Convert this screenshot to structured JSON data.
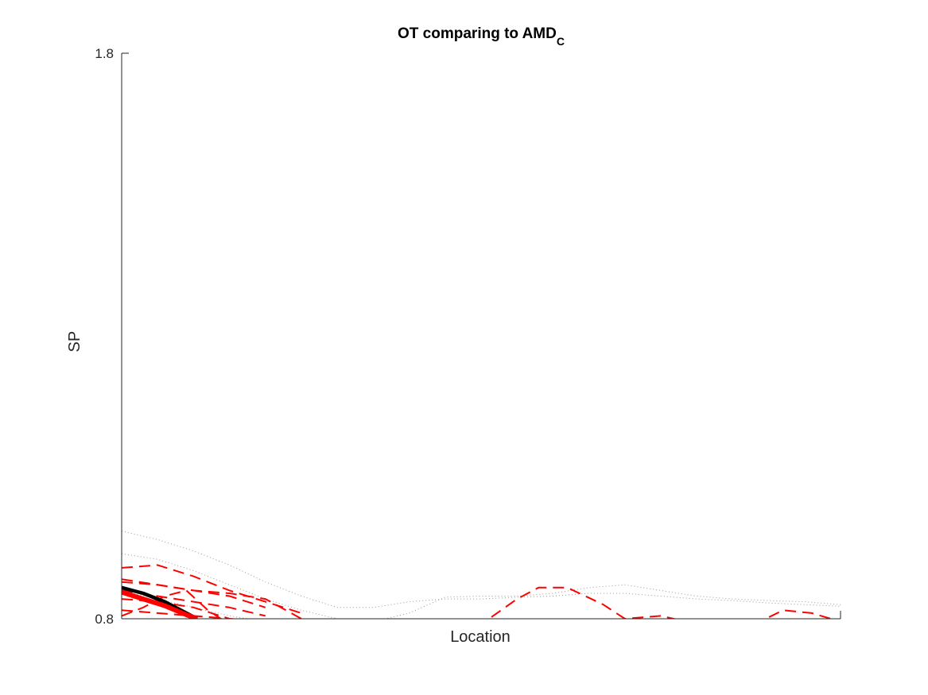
{
  "chart_data": {
    "type": "line",
    "title": "OT comparing to AMD",
    "title_subscript": "C",
    "xlabel": "Location",
    "ylabel": "SP",
    "xlim": [
      0,
      100
    ],
    "ylim": [
      0.8,
      1.8
    ],
    "yticks": [
      "0.8",
      "1.8"
    ],
    "grid": false,
    "colors": {
      "control": "#999999",
      "subject": "#ff0000",
      "mean_control": "#000000",
      "mean_subject": "#ff0000"
    },
    "series": [
      {
        "group": "control",
        "style": "dotted",
        "x": [
          0,
          5,
          10,
          15,
          20,
          25,
          30,
          35,
          40,
          45,
          50,
          55,
          60,
          65,
          70,
          75,
          80,
          85,
          90,
          95,
          100
        ],
        "y": [
          0.955,
          0.94,
          0.92,
          0.895,
          0.865,
          0.84,
          0.82,
          0.82,
          0.83,
          0.835,
          0.835,
          0.838,
          0.84,
          0.845,
          0.845,
          0.84,
          0.835,
          0.832,
          0.828,
          0.825,
          0.822
        ]
      },
      {
        "group": "control",
        "style": "dotted",
        "x": [
          0,
          5,
          10,
          15,
          20,
          25,
          30,
          35,
          40,
          45,
          50,
          55,
          60,
          65,
          70,
          75,
          80,
          85,
          90,
          95,
          100
        ],
        "y": [
          0.915,
          0.905,
          0.885,
          0.86,
          0.835,
          0.815,
          0.8,
          0.795,
          0.81,
          0.838,
          0.84,
          0.84,
          0.845,
          0.855,
          0.86,
          0.85,
          0.84,
          0.835,
          0.832,
          0.83,
          0.825
        ]
      },
      {
        "group": "control",
        "style": "dotted",
        "x": [
          0,
          5,
          10,
          15,
          20,
          25,
          30,
          35
        ],
        "y": [
          0.85,
          0.835,
          0.82,
          0.805,
          0.795,
          0.79,
          0.785,
          0.78
        ]
      },
      {
        "group": "subject",
        "style": "dashed",
        "x": [
          0,
          5,
          10,
          15,
          20,
          25
        ],
        "y": [
          0.89,
          0.895,
          0.875,
          0.85,
          0.83,
          0.81
        ]
      },
      {
        "group": "subject",
        "style": "dashed",
        "x": [
          0,
          5,
          10,
          15,
          20,
          25
        ],
        "y": [
          0.87,
          0.86,
          0.85,
          0.845,
          0.835,
          0.8
        ]
      },
      {
        "group": "subject",
        "style": "dashed",
        "x": [
          0,
          5,
          10,
          15,
          20
        ],
        "y": [
          0.865,
          0.86,
          0.85,
          0.84,
          0.82
        ]
      },
      {
        "group": "subject",
        "style": "dashed",
        "x": [
          0,
          5,
          10,
          15,
          20
        ],
        "y": [
          0.85,
          0.84,
          0.83,
          0.82,
          0.805
        ]
      },
      {
        "group": "subject",
        "style": "dashed",
        "x": [
          0,
          5,
          10,
          15
        ],
        "y": [
          0.835,
          0.83,
          0.82,
          0.8
        ]
      },
      {
        "group": "subject",
        "style": "dashed",
        "x": [
          0,
          3,
          6,
          9,
          12,
          15
        ],
        "y": [
          0.805,
          0.82,
          0.84,
          0.85,
          0.815,
          0.79
        ]
      },
      {
        "group": "subject",
        "style": "dashed",
        "x": [
          0,
          5,
          10,
          15,
          20,
          25
        ],
        "y": [
          0.815,
          0.81,
          0.805,
          0.8,
          0.795,
          0.79
        ]
      },
      {
        "group": "subject",
        "style": "dashed",
        "x": [
          45,
          50,
          55,
          58,
          62,
          67,
          70,
          75,
          82,
          88,
          92,
          96,
          100
        ],
        "y": [
          0.76,
          0.79,
          0.835,
          0.855,
          0.855,
          0.825,
          0.8,
          0.805,
          0.785,
          0.79,
          0.815,
          0.81,
          0.795
        ]
      },
      {
        "group": "mean_control",
        "style": "solid",
        "x": [
          0,
          3,
          6,
          9,
          10.5
        ],
        "y": [
          0.855,
          0.845,
          0.83,
          0.81,
          0.8
        ]
      },
      {
        "group": "mean_subject",
        "style": "solid",
        "x": [
          0,
          3,
          6,
          9,
          10.5
        ],
        "y": [
          0.847,
          0.835,
          0.823,
          0.807,
          0.8
        ]
      }
    ]
  }
}
